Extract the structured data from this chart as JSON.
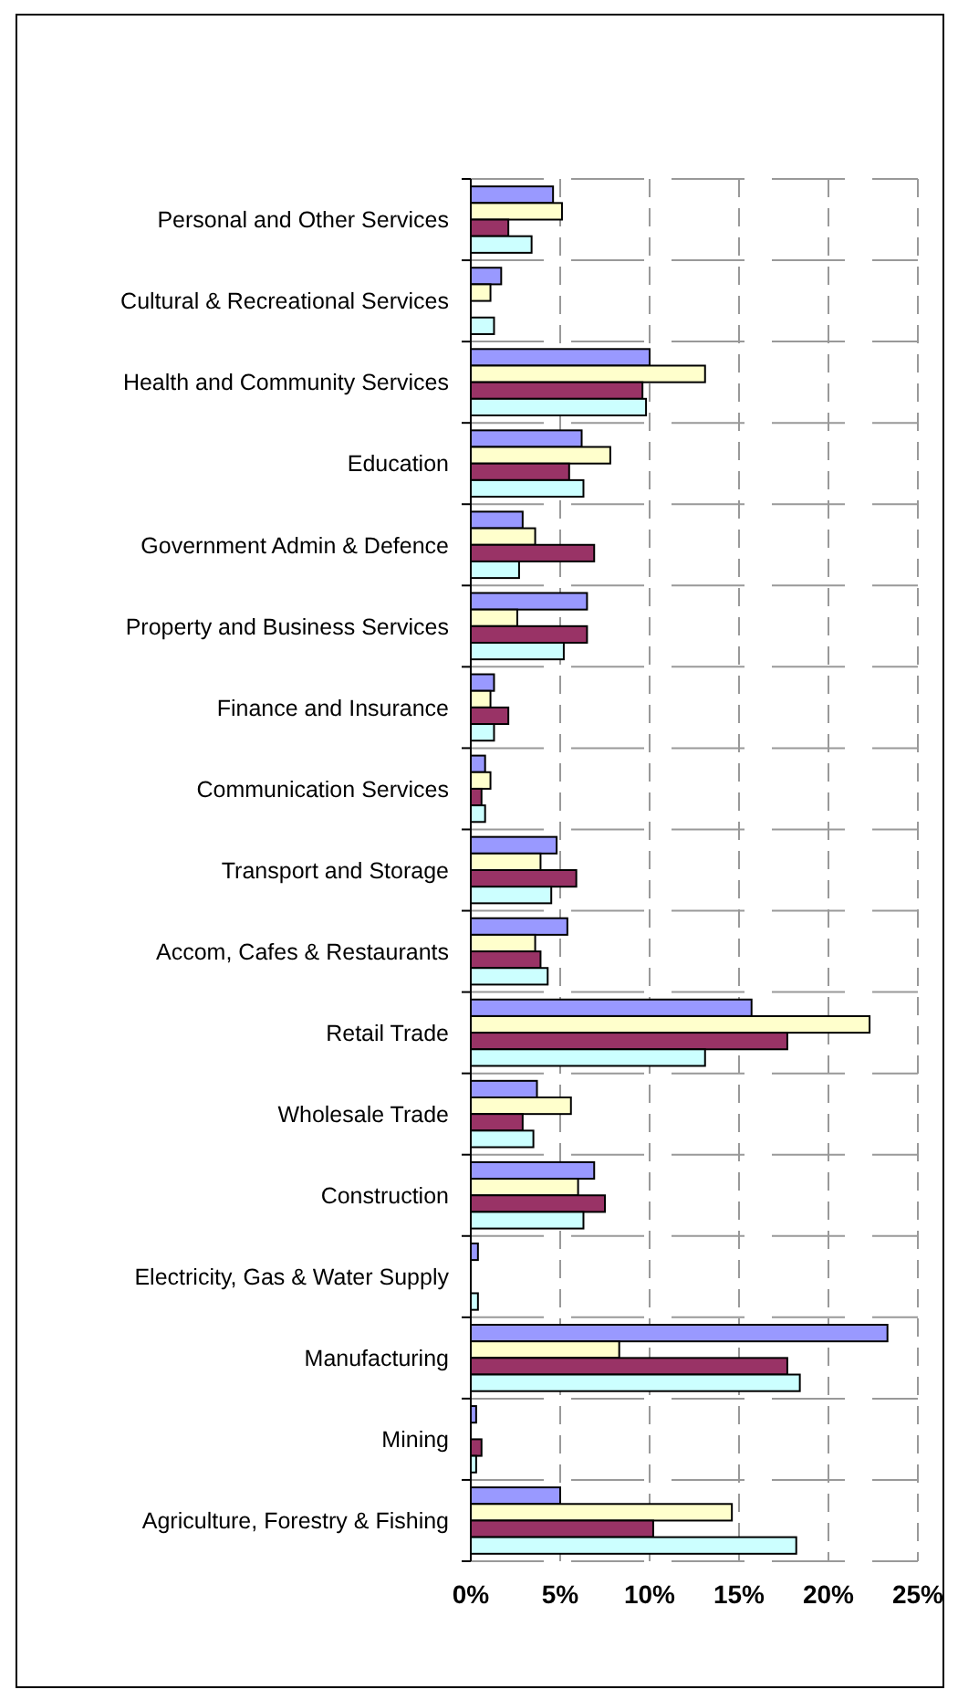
{
  "chart_data": {
    "type": "bar",
    "orientation": "horizontal",
    "categories": [
      "Personal and Other Services",
      "Cultural & Recreational Services",
      "Health and Community Services",
      "Education",
      "Government Admin & Defence",
      "Property and Business Services",
      "Finance and Insurance",
      "Communication Services",
      "Transport and Storage",
      "Accom, Cafes & Restaurants",
      "Retail Trade",
      "Wholesale Trade",
      "Construction",
      "Electricity, Gas & Water Supply",
      "Manufacturing",
      "Mining",
      "Agriculture, Forestry & Fishing"
    ],
    "series": [
      {
        "color": "#9999ff",
        "values": [
          4.6,
          1.7,
          10.0,
          6.2,
          2.9,
          6.5,
          1.3,
          0.8,
          4.8,
          5.4,
          15.7,
          3.7,
          6.9,
          0.4,
          23.3,
          0.3,
          5.0
        ]
      },
      {
        "color": "#ffffcc",
        "values": [
          5.1,
          1.1,
          13.1,
          7.8,
          3.6,
          2.6,
          1.1,
          1.1,
          3.9,
          3.6,
          22.3,
          5.6,
          6.0,
          0,
          8.3,
          0,
          14.6
        ]
      },
      {
        "color": "#993366",
        "values": [
          2.1,
          0,
          9.6,
          5.5,
          6.9,
          6.5,
          2.1,
          0.6,
          5.9,
          3.9,
          17.7,
          2.9,
          7.5,
          0,
          17.7,
          0.6,
          10.2
        ]
      },
      {
        "color": "#ccffff",
        "values": [
          3.4,
          1.3,
          9.8,
          6.3,
          2.7,
          5.2,
          1.3,
          0.8,
          4.5,
          4.3,
          13.1,
          3.5,
          6.3,
          0.4,
          18.4,
          0.3,
          18.2
        ]
      }
    ],
    "xlim": [
      0,
      25
    ],
    "xticks": [
      {
        "value": 0,
        "label": "0%"
      },
      {
        "value": 5,
        "label": "5%"
      },
      {
        "value": 10,
        "label": "10%"
      },
      {
        "value": 15,
        "label": "15%"
      },
      {
        "value": 20,
        "label": "20%"
      },
      {
        "value": 25,
        "label": "25%"
      }
    ],
    "grid": true
  }
}
